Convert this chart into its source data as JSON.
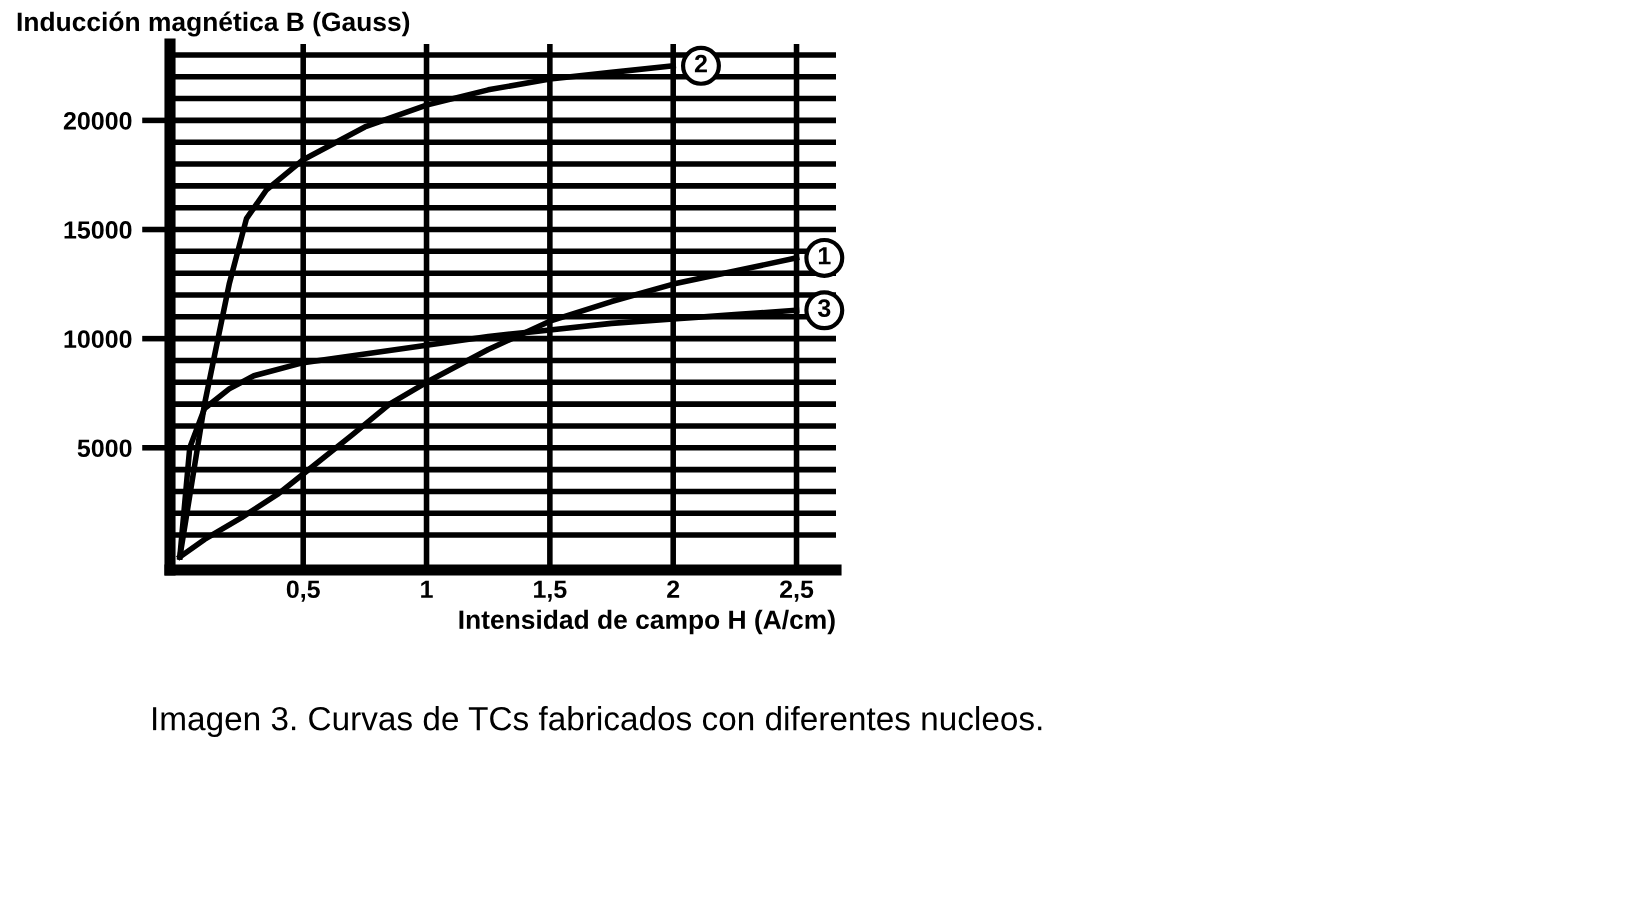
{
  "chart_data": {
    "type": "line",
    "ylabel": "Inducción magnética B (Gauss)",
    "xlabel": "Intensidad de campo H (A/cm)",
    "series": [
      {
        "name": "1",
        "color": "#000000",
        "x": [
          0,
          0.1,
          0.25,
          0.4,
          0.5,
          0.7,
          0.85,
          1,
          1.25,
          1.5,
          1.75,
          2,
          2.25,
          2.5
        ],
        "values": [
          0,
          800,
          1800,
          2900,
          3800,
          5600,
          7000,
          8000,
          9500,
          10800,
          11700,
          12500,
          13100,
          13700
        ]
      },
      {
        "name": "2",
        "color": "#000000",
        "x": [
          0,
          0.1,
          0.2,
          0.27,
          0.35,
          0.5,
          0.75,
          1,
          1.25,
          1.5,
          1.75,
          2
        ],
        "values": [
          0,
          7000,
          12500,
          15500,
          16800,
          18200,
          19700,
          20700,
          21400,
          21900,
          22200,
          22500
        ]
      },
      {
        "name": "3",
        "color": "#000000",
        "x": [
          0,
          0.04,
          0.1,
          0.2,
          0.3,
          0.5,
          0.75,
          1,
          1.25,
          1.5,
          1.75,
          2,
          2.25,
          2.5
        ],
        "values": [
          0,
          5000,
          6800,
          7700,
          8300,
          8900,
          9300,
          9700,
          10100,
          10400,
          10700,
          10900,
          11100,
          11300
        ]
      }
    ],
    "xlim": [
      -0.04,
      2.66
    ],
    "ylim": [
      -600,
      23500
    ],
    "xticks": [
      {
        "value": 0.5,
        "label": "0,5"
      },
      1,
      {
        "value": 1.5,
        "label": "1,5"
      },
      2,
      {
        "value": 2.5,
        "label": "2,5"
      }
    ],
    "yticks": [
      {
        "value": 1000,
        "label": null
      },
      {
        "value": 2000,
        "label": null
      },
      {
        "value": 3000,
        "label": null
      },
      {
        "value": 4000,
        "label": null
      },
      5000,
      {
        "value": 6000,
        "label": null
      },
      {
        "value": 7000,
        "label": null
      },
      {
        "value": 8000,
        "label": null
      },
      {
        "value": 9000,
        "label": null
      },
      10000,
      {
        "value": 11000,
        "label": null
      },
      {
        "value": 12000,
        "label": null
      },
      {
        "value": 13000,
        "label": null
      },
      {
        "value": 14000,
        "label": null
      },
      15000,
      {
        "value": 16000,
        "label": null
      },
      {
        "value": 17000,
        "label": null
      },
      {
        "value": 18000,
        "label": null
      },
      {
        "value": 19000,
        "label": null
      },
      20000,
      {
        "value": 21000,
        "label": null
      },
      {
        "value": 22000,
        "label": null
      },
      {
        "value": 23000,
        "label": null
      }
    ],
    "grid": true,
    "marker": "none",
    "line_style": "solid",
    "annotations": [
      "Imagen 3. Curvas de TCs fabricados con diferentes nucleos."
    ]
  }
}
